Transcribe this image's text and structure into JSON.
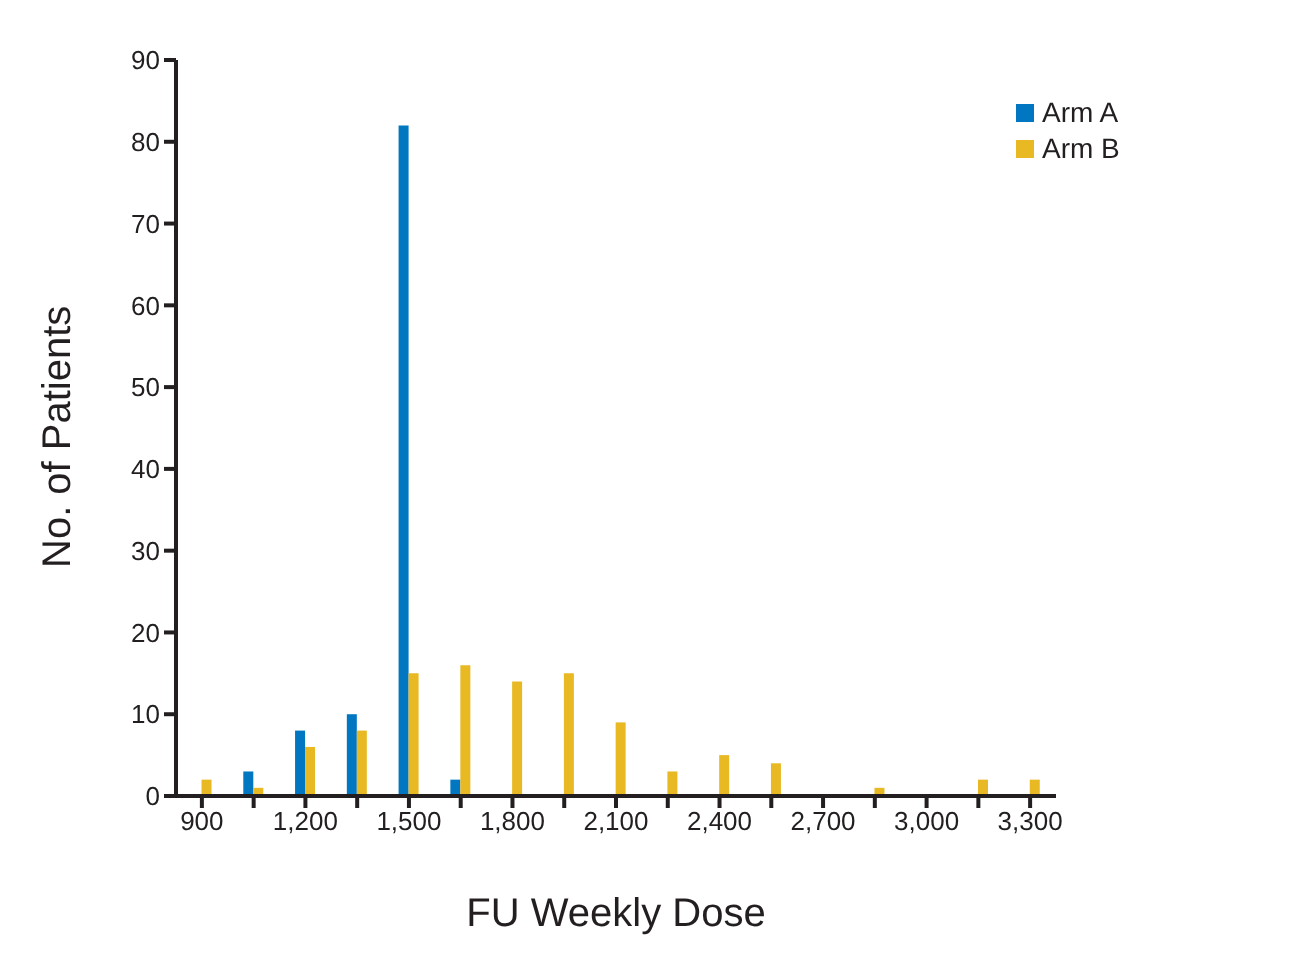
{
  "chart_data": {
    "type": "bar",
    "xlabel": "FU Weekly Dose",
    "ylabel": "No. of Patients",
    "categories": [
      "900",
      null,
      "1,200",
      null,
      "1,500",
      null,
      "1,800",
      null,
      "2,100",
      null,
      "2,400",
      null,
      "2,700",
      null,
      "3,000",
      null,
      "3,300"
    ],
    "series": [
      {
        "name": "Arm A",
        "color": "#0077c0",
        "values": [
          0,
          3,
          8,
          10,
          82,
          2,
          0,
          0,
          0,
          0,
          0,
          0,
          0,
          0,
          0,
          0,
          0
        ]
      },
      {
        "name": "Arm B",
        "color": "#e8b923",
        "values": [
          2,
          1,
          6,
          8,
          15,
          16,
          14,
          15,
          9,
          3,
          5,
          4,
          0,
          1,
          0,
          2,
          2
        ]
      }
    ],
    "ylim": [
      0,
      90
    ],
    "yticks": [
      0,
      10,
      20,
      30,
      40,
      50,
      60,
      70,
      80,
      90
    ],
    "grid": false,
    "legend": "top right"
  }
}
